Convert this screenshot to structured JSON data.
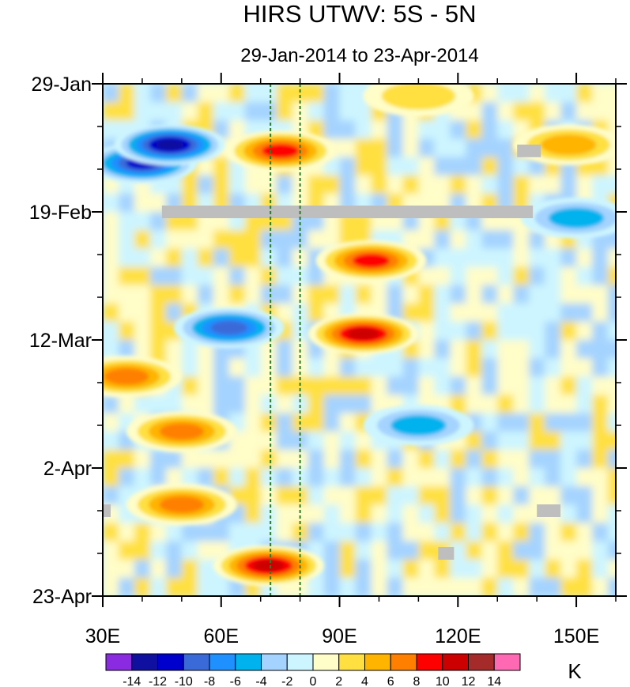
{
  "chart_data": {
    "type": "heatmap",
    "title": "HIRS UTWV: 5S - 5N",
    "subtitle": "29-Jan-2014 to 23-Apr-2014",
    "x_range": [
      30,
      160
    ],
    "x_ticks": [
      30,
      60,
      90,
      120,
      150
    ],
    "x_tick_labels": [
      "30E",
      "60E",
      "90E",
      "120E",
      "150E"
    ],
    "y_range_days": [
      0,
      84
    ],
    "y_ticks_days": [
      0,
      21,
      42,
      63,
      84
    ],
    "y_tick_labels": [
      "29-Jan",
      "19-Feb",
      "12-Mar",
      "2-Apr",
      "23-Apr"
    ],
    "units": "K",
    "colorbar": {
      "levels": [
        -14,
        -12,
        -10,
        -8,
        -6,
        -4,
        -2,
        0,
        2,
        4,
        6,
        8,
        10,
        12,
        14
      ],
      "labels": [
        "-14",
        "-12",
        "-10",
        "-8",
        "-6",
        "-4",
        "-2",
        "0",
        "2",
        "4",
        "6",
        "8",
        "10",
        "12",
        "14"
      ],
      "colors": [
        "#8a2be2",
        "#1010a0",
        "#0000cd",
        "#3a6ad8",
        "#1e90ff",
        "#00b2ee",
        "#a4d3ff",
        "#cdf5ff",
        "#fffdc8",
        "#ffe040",
        "#ffb400",
        "#ff8000",
        "#ff0000",
        "#cd0000",
        "#a52a2a",
        "#ff69b4"
      ]
    },
    "reference_lines_lon": [
      72.5,
      80
    ],
    "missing_data_color": "#bebebe",
    "missing_segments": [
      {
        "lon": [
          45,
          139
        ],
        "day": [
          21,
          21
        ]
      },
      {
        "lon": [
          135,
          141
        ],
        "day": [
          11,
          11
        ]
      },
      {
        "lon": [
          30,
          32
        ],
        "day": [
          70,
          70
        ]
      },
      {
        "lon": [
          140,
          146
        ],
        "day": [
          70,
          70
        ]
      },
      {
        "lon": [
          115,
          119
        ],
        "day": [
          77,
          77
        ]
      }
    ],
    "anomaly_features": [
      {
        "lon": 40,
        "day": 13,
        "value": -12
      },
      {
        "lon": 62,
        "day": 40,
        "value": -10
      },
      {
        "lon": 47,
        "day": 10,
        "value": -14
      },
      {
        "lon": 98,
        "day": 29,
        "value": 10
      },
      {
        "lon": 96,
        "day": 41,
        "value": 12
      },
      {
        "lon": 72,
        "day": 79,
        "value": 12
      },
      {
        "lon": 75,
        "day": 11,
        "value": 10
      },
      {
        "lon": 110,
        "day": 2,
        "value": 4
      },
      {
        "lon": 148,
        "day": 10,
        "value": 6
      },
      {
        "lon": 36,
        "day": 48,
        "value": 8
      },
      {
        "lon": 50,
        "day": 57,
        "value": 8
      },
      {
        "lon": 50,
        "day": 69,
        "value": 8
      },
      {
        "lon": 110,
        "day": 56,
        "value": -6
      },
      {
        "lon": 150,
        "day": 22,
        "value": -6
      }
    ]
  }
}
